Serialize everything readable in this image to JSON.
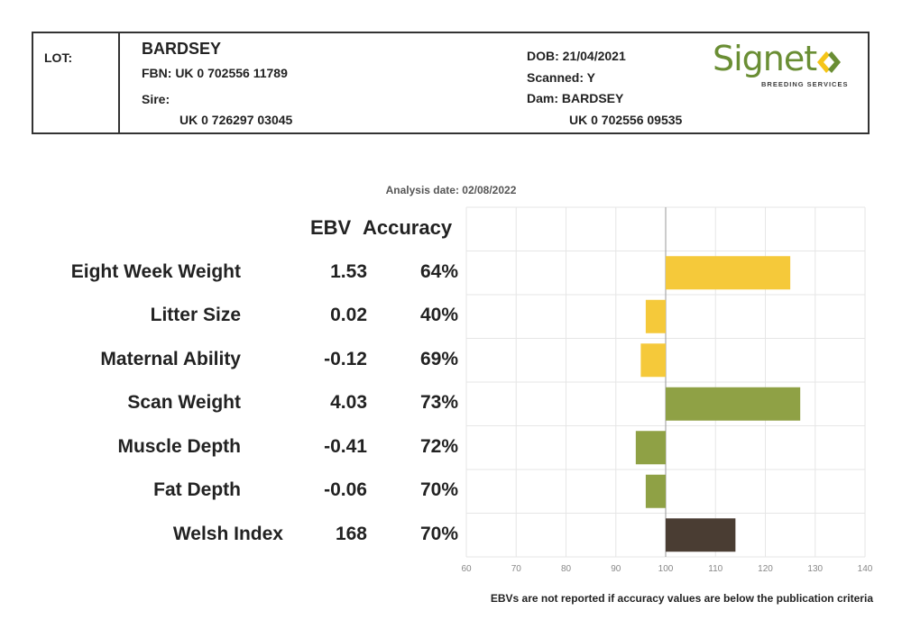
{
  "header": {
    "lot_label": "LOT:",
    "name": "BARDSEY",
    "fbn": "FBN: UK 0 702556 11789",
    "sire_label": "Sire:",
    "sire_id": "UK 0 726297 03045",
    "dob": "DOB: 21/04/2021",
    "scanned": "Scanned: Y",
    "dam": "Dam: BARDSEY",
    "dam_id": "UK 0 702556 09535"
  },
  "logo": {
    "word": "Signet",
    "sub": "BREEDING SERVICES",
    "icon": "signet-chevrons-icon",
    "colors": {
      "green": "#6a8e34",
      "yellow": "#f5c518"
    }
  },
  "analysis_date": "Analysis date: 02/08/2022",
  "columns": {
    "ebv": "EBV",
    "accuracy": "Accuracy"
  },
  "footnote": "EBVs are not reported if accuracy values are below the publication criteria",
  "chart_data": {
    "type": "bar",
    "orientation": "horizontal",
    "baseline": 100,
    "xlim": [
      60,
      140
    ],
    "xticks": [
      "60",
      "70",
      "80",
      "90",
      "100",
      "110",
      "120",
      "130",
      "140"
    ],
    "grid": true,
    "rows": [
      {
        "label": "Eight Week Weight",
        "ebv": "1.53",
        "accuracy": "64%",
        "value": 125,
        "color": "#f5c93a"
      },
      {
        "label": "Litter Size",
        "ebv": "0.02",
        "accuracy": "40%",
        "value": 96,
        "color": "#f5c93a"
      },
      {
        "label": "Maternal Ability",
        "ebv": "-0.12",
        "accuracy": "69%",
        "value": 95,
        "color": "#f5c93a"
      },
      {
        "label": "Scan Weight",
        "ebv": "4.03",
        "accuracy": "73%",
        "value": 127,
        "color": "#8fa145"
      },
      {
        "label": "Muscle Depth",
        "ebv": "-0.41",
        "accuracy": "72%",
        "value": 94,
        "color": "#8fa145"
      },
      {
        "label": "Fat Depth",
        "ebv": "-0.06",
        "accuracy": "70%",
        "value": 96,
        "color": "#8fa145"
      },
      {
        "label": "Welsh Index",
        "ebv": "168",
        "accuracy": "70%",
        "value": 114,
        "color": "#4a3d33"
      }
    ]
  }
}
